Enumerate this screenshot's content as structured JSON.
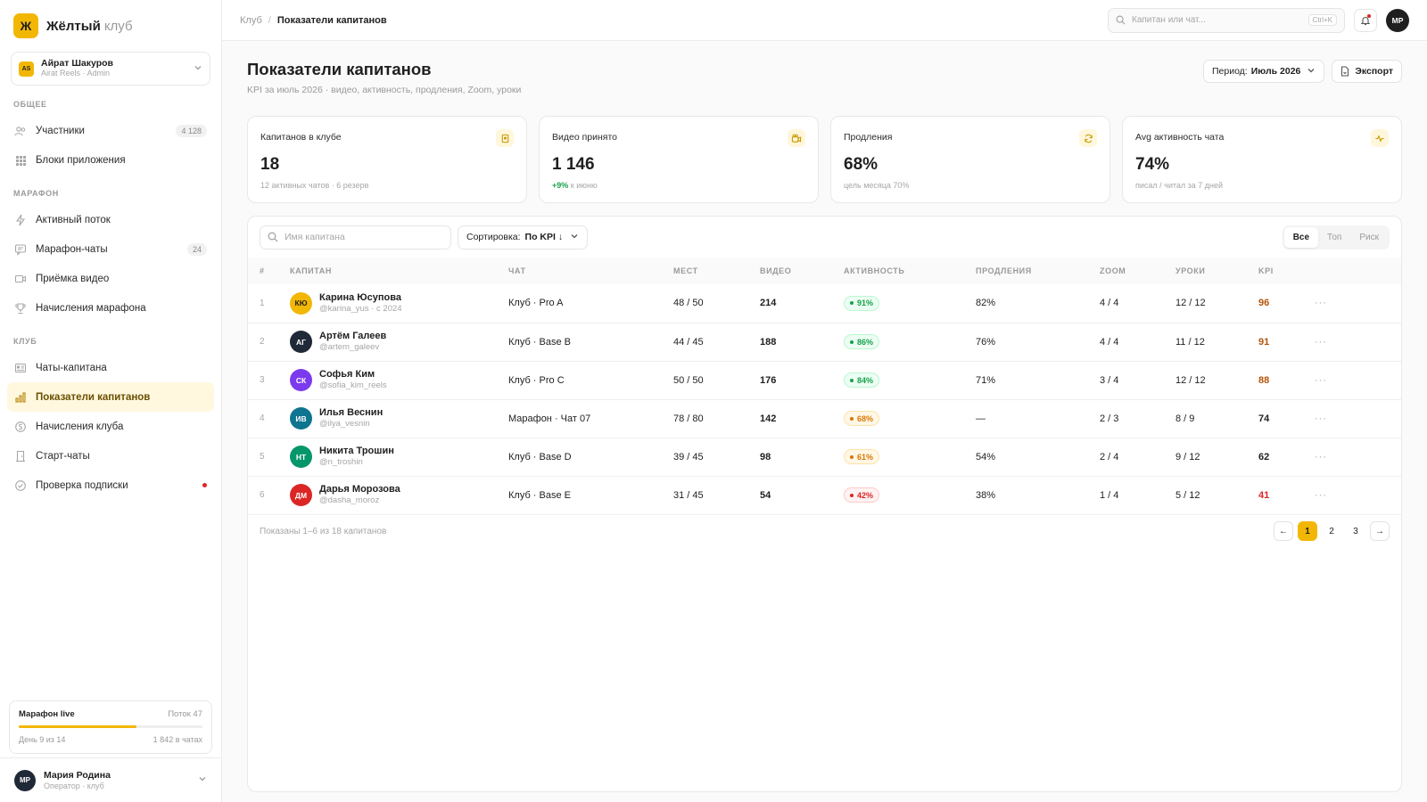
{
  "brand": {
    "logo_letter": "Ж",
    "name": "Жёлтый",
    "suffix": "клуб",
    "color": "#f2b705"
  },
  "account": {
    "badge": "AS",
    "name": "Айрат Шакуров",
    "sub": "Airat Reels · Admin"
  },
  "nav": {
    "sections": [
      {
        "title": "ОБЩЕЕ",
        "items": [
          {
            "label": "Участники",
            "icon": "users-icon",
            "count": "4 128"
          },
          {
            "label": "Блоки приложения",
            "icon": "grid-icon"
          }
        ]
      },
      {
        "title": "МАРАФОН",
        "items": [
          {
            "label": "Активный поток",
            "icon": "bolt-icon"
          },
          {
            "label": "Марафон-чаты",
            "icon": "chat-icon",
            "count": "24"
          },
          {
            "label": "Приёмка видео",
            "icon": "video-icon"
          },
          {
            "label": "Начисления марафона",
            "icon": "trophy-icon"
          }
        ]
      },
      {
        "title": "КЛУБ",
        "items": [
          {
            "label": "Чаты-капитана",
            "icon": "id-card-icon"
          },
          {
            "label": "Показатели капитанов",
            "icon": "chart-icon",
            "active": true
          },
          {
            "label": "Начисления клуба",
            "icon": "coin-icon"
          },
          {
            "label": "Старт-чаты",
            "icon": "door-icon"
          },
          {
            "label": "Проверка подписки",
            "icon": "check-circle-icon",
            "dot": true
          }
        ]
      }
    ]
  },
  "marathon": {
    "title": "Марафон live",
    "stream": "Поток 47",
    "progress": 0.64,
    "day": "День 9 из 14",
    "chats": "1 842 в чатах"
  },
  "user": {
    "initials": "МР",
    "name": "Мария Родина",
    "role": "Оператор · клуб"
  },
  "topbar": {
    "crumb_root": "Клуб",
    "crumb_sep": "/",
    "crumb_current": "Показатели капитанов",
    "search_placeholder": "Капитан или чат...",
    "search_kbd": "Ctrl+K",
    "avatar": "МР"
  },
  "page": {
    "title": "Показатели капитанов",
    "subtitle": "KPI за июль 2026 · видео, активность, продления, Zoom, уроки",
    "period_label": "Период:",
    "period_value": "Июль 2026",
    "export_label": "Экспорт"
  },
  "kpis": [
    {
      "label": "Капитанов в клубе",
      "value": "18",
      "sub": "12 активных чатов · 6 резерв",
      "icon": "badge-icon"
    },
    {
      "label": "Видео принято",
      "value": "1 146",
      "delta": "+9%",
      "sub": "к июню",
      "icon": "camera-icon"
    },
    {
      "label": "Продления",
      "value": "68%",
      "sub": "цель месяца 70%",
      "icon": "refresh-icon"
    },
    {
      "label": "Avg активность чата",
      "value": "74%",
      "sub": "писал / читал за 7 дней",
      "icon": "pulse-icon"
    }
  ],
  "table": {
    "search_placeholder": "Имя капитана",
    "sort_label": "Сортировка:",
    "sort_value": "По KPI ↓",
    "filters": [
      "Все",
      "Топ",
      "Риск"
    ],
    "columns": [
      "#",
      "КАПИТАН",
      "ЧАТ",
      "МЕСТ",
      "ВИДЕО",
      "АКТИВНОСТЬ",
      "ПРОДЛЕНИЯ",
      "ZOOM",
      "УРОКИ",
      "KPI"
    ],
    "rows": [
      {
        "num": "1",
        "initials": "КЮ",
        "avatar_color": "#f2b705",
        "avatar_text": "#1f1f1f",
        "name": "Карина Юсупова",
        "handle": "@karina_yus · с 2024",
        "chat": "Клуб · Pro A",
        "seats": "48 / 50",
        "videos": "214",
        "activity": "91%",
        "activity_level": "good",
        "renewals": "82%",
        "zoom": "4 / 4",
        "lessons": "12 / 12",
        "kpi": "96",
        "kpi_color": "#b45309"
      },
      {
        "num": "2",
        "initials": "АГ",
        "avatar_color": "#1f2937",
        "avatar_text": "#ffffff",
        "name": "Артём Галеев",
        "handle": "@artem_galeev",
        "chat": "Клуб · Base B",
        "seats": "44 / 45",
        "videos": "188",
        "activity": "86%",
        "activity_level": "good",
        "renewals": "76%",
        "zoom": "4 / 4",
        "lessons": "11 / 12",
        "kpi": "91",
        "kpi_color": "#b45309"
      },
      {
        "num": "3",
        "initials": "СК",
        "avatar_color": "#7c3aed",
        "avatar_text": "#ffffff",
        "name": "Софья Ким",
        "handle": "@sofia_kim_reels",
        "chat": "Клуб · Pro C",
        "seats": "50 / 50",
        "videos": "176",
        "activity": "84%",
        "activity_level": "good",
        "renewals": "71%",
        "zoom": "3 / 4",
        "lessons": "12 / 12",
        "kpi": "88",
        "kpi_color": "#b45309"
      },
      {
        "num": "4",
        "initials": "ИВ",
        "avatar_color": "#0e7490",
        "avatar_text": "#ffffff",
        "name": "Илья Веснин",
        "handle": "@ilya_vesnin",
        "chat": "Марафон · Чат 07",
        "seats": "78 / 80",
        "videos": "142",
        "activity": "68%",
        "activity_level": "warn",
        "renewals": "—",
        "zoom": "2 / 3",
        "lessons": "8 / 9",
        "kpi": "74",
        "kpi_color": "#1f1f1f"
      },
      {
        "num": "5",
        "initials": "НТ",
        "avatar_color": "#059669",
        "avatar_text": "#ffffff",
        "name": "Никита Трошин",
        "handle": "@n_troshin",
        "chat": "Клуб · Base D",
        "seats": "39 / 45",
        "videos": "98",
        "activity": "61%",
        "activity_level": "warn",
        "renewals": "54%",
        "zoom": "2 / 4",
        "lessons": "9 / 12",
        "kpi": "62",
        "kpi_color": "#1f1f1f"
      },
      {
        "num": "6",
        "initials": "ДМ",
        "avatar_color": "#dc2626",
        "avatar_text": "#ffffff",
        "name": "Дарья Морозова",
        "handle": "@dasha_moroz",
        "chat": "Клуб · Base E",
        "seats": "31 / 45",
        "videos": "54",
        "activity": "42%",
        "activity_level": "bad",
        "renewals": "38%",
        "zoom": "1 / 4",
        "lessons": "5 / 12",
        "kpi": "41",
        "kpi_color": "#dc2626"
      }
    ],
    "shown": "Показаны 1–6 из 18 капитанов",
    "pages": [
      "1",
      "2",
      "3"
    ],
    "prev": "←",
    "next": "→"
  },
  "status_colors": {
    "good": "#16a34a",
    "warn": "#d97706",
    "bad": "#dc2626"
  }
}
